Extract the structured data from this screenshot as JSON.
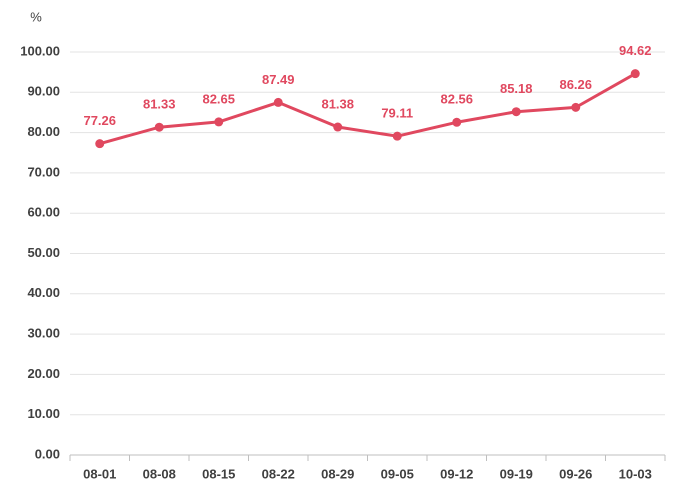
{
  "chart_data": {
    "type": "line",
    "y_unit_label": "%",
    "categories": [
      "08-01",
      "08-08",
      "08-15",
      "08-22",
      "08-29",
      "09-05",
      "09-12",
      "09-19",
      "09-26",
      "10-03"
    ],
    "values": [
      77.26,
      81.33,
      82.65,
      87.49,
      81.38,
      79.11,
      82.56,
      85.18,
      86.26,
      94.62
    ],
    "color": "#e0485f",
    "ylim": [
      0,
      100
    ],
    "yticks": [
      {
        "value": 0,
        "label": "0.00"
      },
      {
        "value": 10,
        "label": "10.00"
      },
      {
        "value": 20,
        "label": "20.00"
      },
      {
        "value": 30,
        "label": "30.00"
      },
      {
        "value": 40,
        "label": "40.00"
      },
      {
        "value": 50,
        "label": "50.00"
      },
      {
        "value": 60,
        "label": "60.00"
      },
      {
        "value": 70,
        "label": "70.00"
      },
      {
        "value": 80,
        "label": "80.00"
      },
      {
        "value": 90,
        "label": "90.00"
      },
      {
        "value": 100,
        "label": "100.00"
      }
    ],
    "grid": true
  }
}
